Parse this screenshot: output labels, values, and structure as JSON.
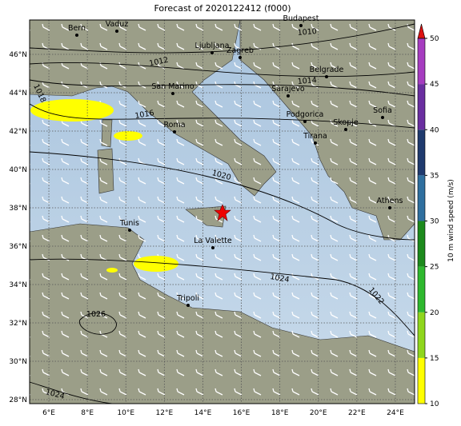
{
  "title": "Forecast of 2020122412 (f000)",
  "lon_ticks": [
    {
      "value": 6,
      "label": "6°E"
    },
    {
      "value": 8,
      "label": "8°E"
    },
    {
      "value": 10,
      "label": "10°E"
    },
    {
      "value": 12,
      "label": "12°E"
    },
    {
      "value": 14,
      "label": "14°E"
    },
    {
      "value": 16,
      "label": "16°E"
    },
    {
      "value": 18,
      "label": "18°E"
    },
    {
      "value": 20,
      "label": "20°E"
    },
    {
      "value": 22,
      "label": "22°E"
    },
    {
      "value": 24,
      "label": "24°E"
    }
  ],
  "lat_ticks": [
    {
      "value": 46,
      "label": "46°N"
    },
    {
      "value": 44,
      "label": "44°N"
    },
    {
      "value": 42,
      "label": "42°N"
    },
    {
      "value": 40,
      "label": "40°N"
    },
    {
      "value": 38,
      "label": "38°N"
    },
    {
      "value": 36,
      "label": "36°N"
    },
    {
      "value": 34,
      "label": "34°N"
    },
    {
      "value": 32,
      "label": "32°N"
    },
    {
      "value": 30,
      "label": "30°N"
    },
    {
      "value": 28,
      "label": "28°N"
    }
  ],
  "cities": [
    "Bern",
    "Vaduz",
    "Budapest",
    "Ljubljana",
    "Zagreb",
    "Belgrade",
    "San Marino",
    "Sarajevo",
    "Sofia",
    "Podgorica",
    "Skopje",
    "Roma",
    "Tirana",
    "Athens",
    "Tunis",
    "La Valette",
    "Tripoli"
  ],
  "isobar_labels": [
    1010,
    1012,
    1014,
    1016,
    1018,
    1020,
    1022,
    1024,
    1026,
    1024
  ],
  "colorbar": {
    "label": "10 m wind speed (m/s)",
    "lim": [
      10,
      50
    ],
    "ticks": [
      10,
      15,
      20,
      25,
      30,
      35,
      40,
      45,
      50
    ],
    "colors": [
      "#ffff00",
      "#8fd61c",
      "#2eb82e",
      "#1c8a1c",
      "#2f6f9f",
      "#1f3a6e",
      "#6a2ea0",
      "#a63cc0"
    ],
    "extend_color": "#dd1111"
  }
}
